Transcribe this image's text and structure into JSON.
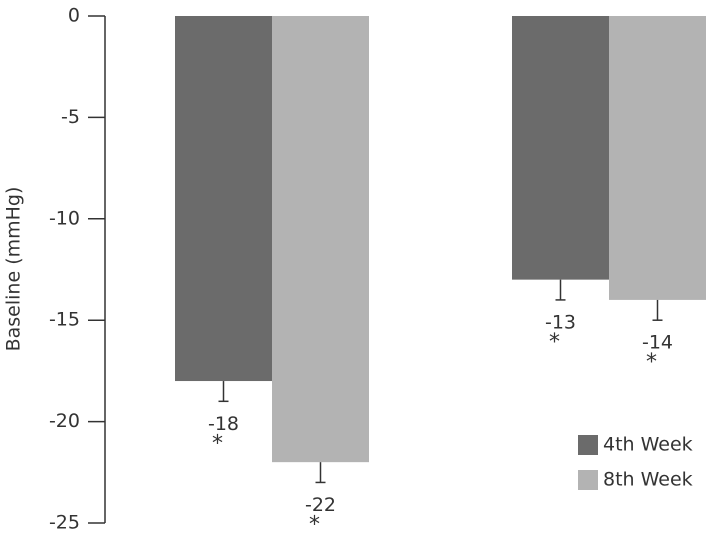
{
  "chart_data": {
    "type": "bar",
    "y_label": "Baseline (mmHg)",
    "categories": [
      null,
      null
    ],
    "series": [
      {
        "name": "4th Week",
        "color": "#6b6b6b",
        "values": [
          -18,
          -13
        ],
        "errors": [
          1,
          1
        ],
        "annotations": [
          "*",
          "*"
        ]
      },
      {
        "name": "8th Week",
        "color": "#b3b3b3",
        "values": [
          -22,
          -14
        ],
        "errors": [
          1,
          1
        ],
        "annotations": [
          "*",
          "*"
        ]
      }
    ],
    "ylim": [
      -25,
      0
    ],
    "yticks": [
      0,
      -5,
      -10,
      -15,
      -20,
      -25
    ],
    "legend": "lower-right"
  }
}
